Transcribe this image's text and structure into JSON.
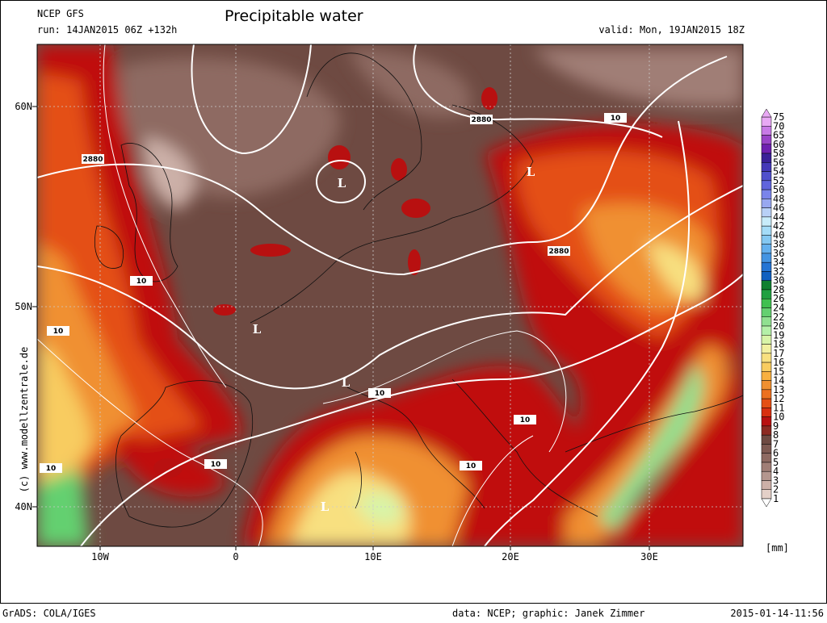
{
  "header": {
    "model": "NCEP GFS",
    "run": "run: 14JAN2015 06Z +132h",
    "title": "Precipitable water",
    "valid": "valid: Mon, 19JAN2015 18Z"
  },
  "map": {
    "lat_labels": [
      "60N",
      "50N",
      "40N"
    ],
    "lon_labels": [
      "10W",
      "0",
      "10E",
      "20E",
      "30E"
    ],
    "contour_labels": [
      "2880",
      "2880",
      "2880",
      "10",
      "10",
      "10",
      "10",
      "10",
      "10",
      "10",
      "10"
    ],
    "lows": [
      "L",
      "L",
      "L",
      "L",
      "L"
    ],
    "watermark": "(c)  www.modellzentrale.de"
  },
  "colorbar": {
    "levels": [
      "75",
      "70",
      "65",
      "60",
      "58",
      "56",
      "54",
      "52",
      "50",
      "48",
      "46",
      "44",
      "42",
      "40",
      "38",
      "36",
      "34",
      "32",
      "30",
      "28",
      "26",
      "24",
      "22",
      "20",
      "19",
      "18",
      "17",
      "16",
      "15",
      "14",
      "13",
      "12",
      "11",
      "10",
      "9",
      "8",
      "7",
      "6",
      "5",
      "4",
      "3",
      "2",
      "1"
    ],
    "colors": [
      "#e8a8f4",
      "#c87ae6",
      "#9a44c8",
      "#6e20b0",
      "#3a2098",
      "#4438b8",
      "#5050cc",
      "#6064dc",
      "#7a84ea",
      "#98a8f0",
      "#b8d0f6",
      "#c8ecfa",
      "#a4dcf8",
      "#84c8f2",
      "#64b0ee",
      "#4494e2",
      "#2474d4",
      "#1060c0",
      "#108030",
      "#20a040",
      "#40c050",
      "#64d070",
      "#90e090",
      "#b4f0a8",
      "#d8f4a8",
      "#f2f0a0",
      "#f8e080",
      "#f8cc60",
      "#f8b040",
      "#f09030",
      "#ec7020",
      "#e45014",
      "#d83010",
      "#b81010",
      "#8c2a22",
      "#6e4a42",
      "#7e5a52",
      "#8e6a62",
      "#a07e76",
      "#b4968e",
      "#ccb0a8",
      "#e4d0c8"
    ],
    "unit": "[mm]"
  },
  "footer": {
    "software": "GrADS: COLA/IGES",
    "credit": "data: NCEP; graphic: Janek Zimmer",
    "timestamp": "2015-01-14-11:56"
  }
}
